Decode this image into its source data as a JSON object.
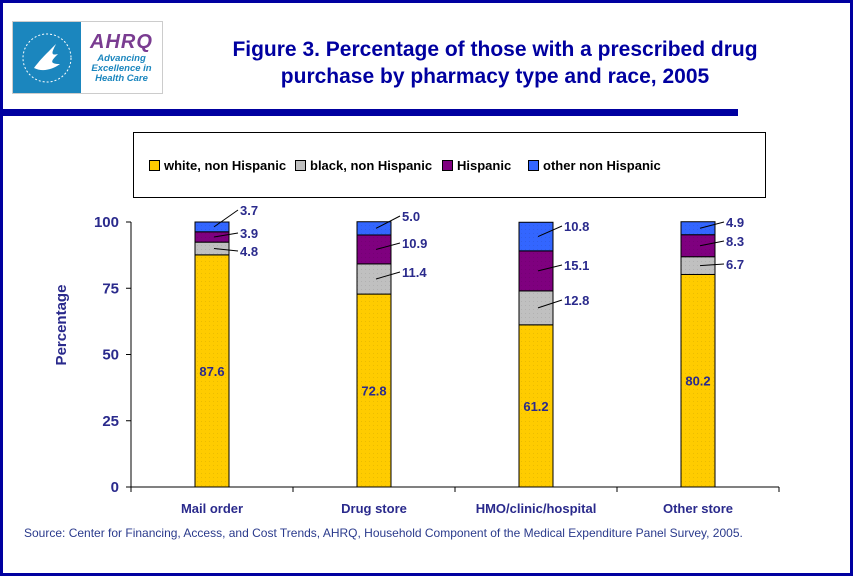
{
  "header": {
    "logo": {
      "hhs_icon": "hhs-eagle-icon",
      "brand": "AHRQ",
      "tagline_lines": [
        "Advancing",
        "Excellence in",
        "Health Care"
      ]
    },
    "title_lines": [
      "Figure 3. Percentage of those with a prescribed drug",
      "purchase by pharmacy type and race, 2005"
    ]
  },
  "colors": {
    "frame": "#0000a0",
    "text_blue": "#2a2a8c",
    "white_non_hispanic": "#ffcc00",
    "black_non_hispanic": "#c0c0c0",
    "hispanic": "#7f007f",
    "other_non_hispanic": "#3366ff"
  },
  "chart_data": {
    "type": "bar",
    "stacked": true,
    "title": "Figure 3. Percentage of those with a prescribed drug purchase by pharmacy type and race, 2005",
    "xlabel": "",
    "ylabel": "Percentage",
    "ylim": [
      0,
      100
    ],
    "yticks": [
      0,
      25,
      50,
      75,
      100
    ],
    "grid": false,
    "legend_position": "top",
    "categories": [
      "Mail order",
      "Drug store",
      "HMO/clinic/hospital",
      "Other store"
    ],
    "series": [
      {
        "name": "white, non Hispanic",
        "color": "#ffcc00",
        "values": [
          87.6,
          72.8,
          61.2,
          80.2
        ]
      },
      {
        "name": "black, non Hispanic",
        "color": "#c0c0c0",
        "values": [
          4.8,
          11.4,
          12.8,
          6.7
        ]
      },
      {
        "name": "Hispanic",
        "color": "#7f007f",
        "values": [
          3.9,
          10.9,
          15.1,
          8.3
        ]
      },
      {
        "name": "other non Hispanic",
        "color": "#3366ff",
        "values": [
          3.7,
          5.0,
          10.8,
          4.9
        ]
      }
    ],
    "data_labels": {
      "white, non Hispanic": [
        "87.6",
        "72.8",
        "61.2",
        "80.2"
      ],
      "black, non Hispanic": [
        "4.8",
        "11.4",
        "12.8",
        "6.7"
      ],
      "Hispanic": [
        "3.9",
        "10.9",
        "15.1",
        "8.3"
      ],
      "other non Hispanic": [
        "3.7",
        "5.0",
        "10.8",
        "4.9"
      ]
    }
  },
  "source_note": "Source: Center for Financing, Access, and Cost Trends, AHRQ, Household Component of the Medical Expenditure Panel Survey, 2005."
}
